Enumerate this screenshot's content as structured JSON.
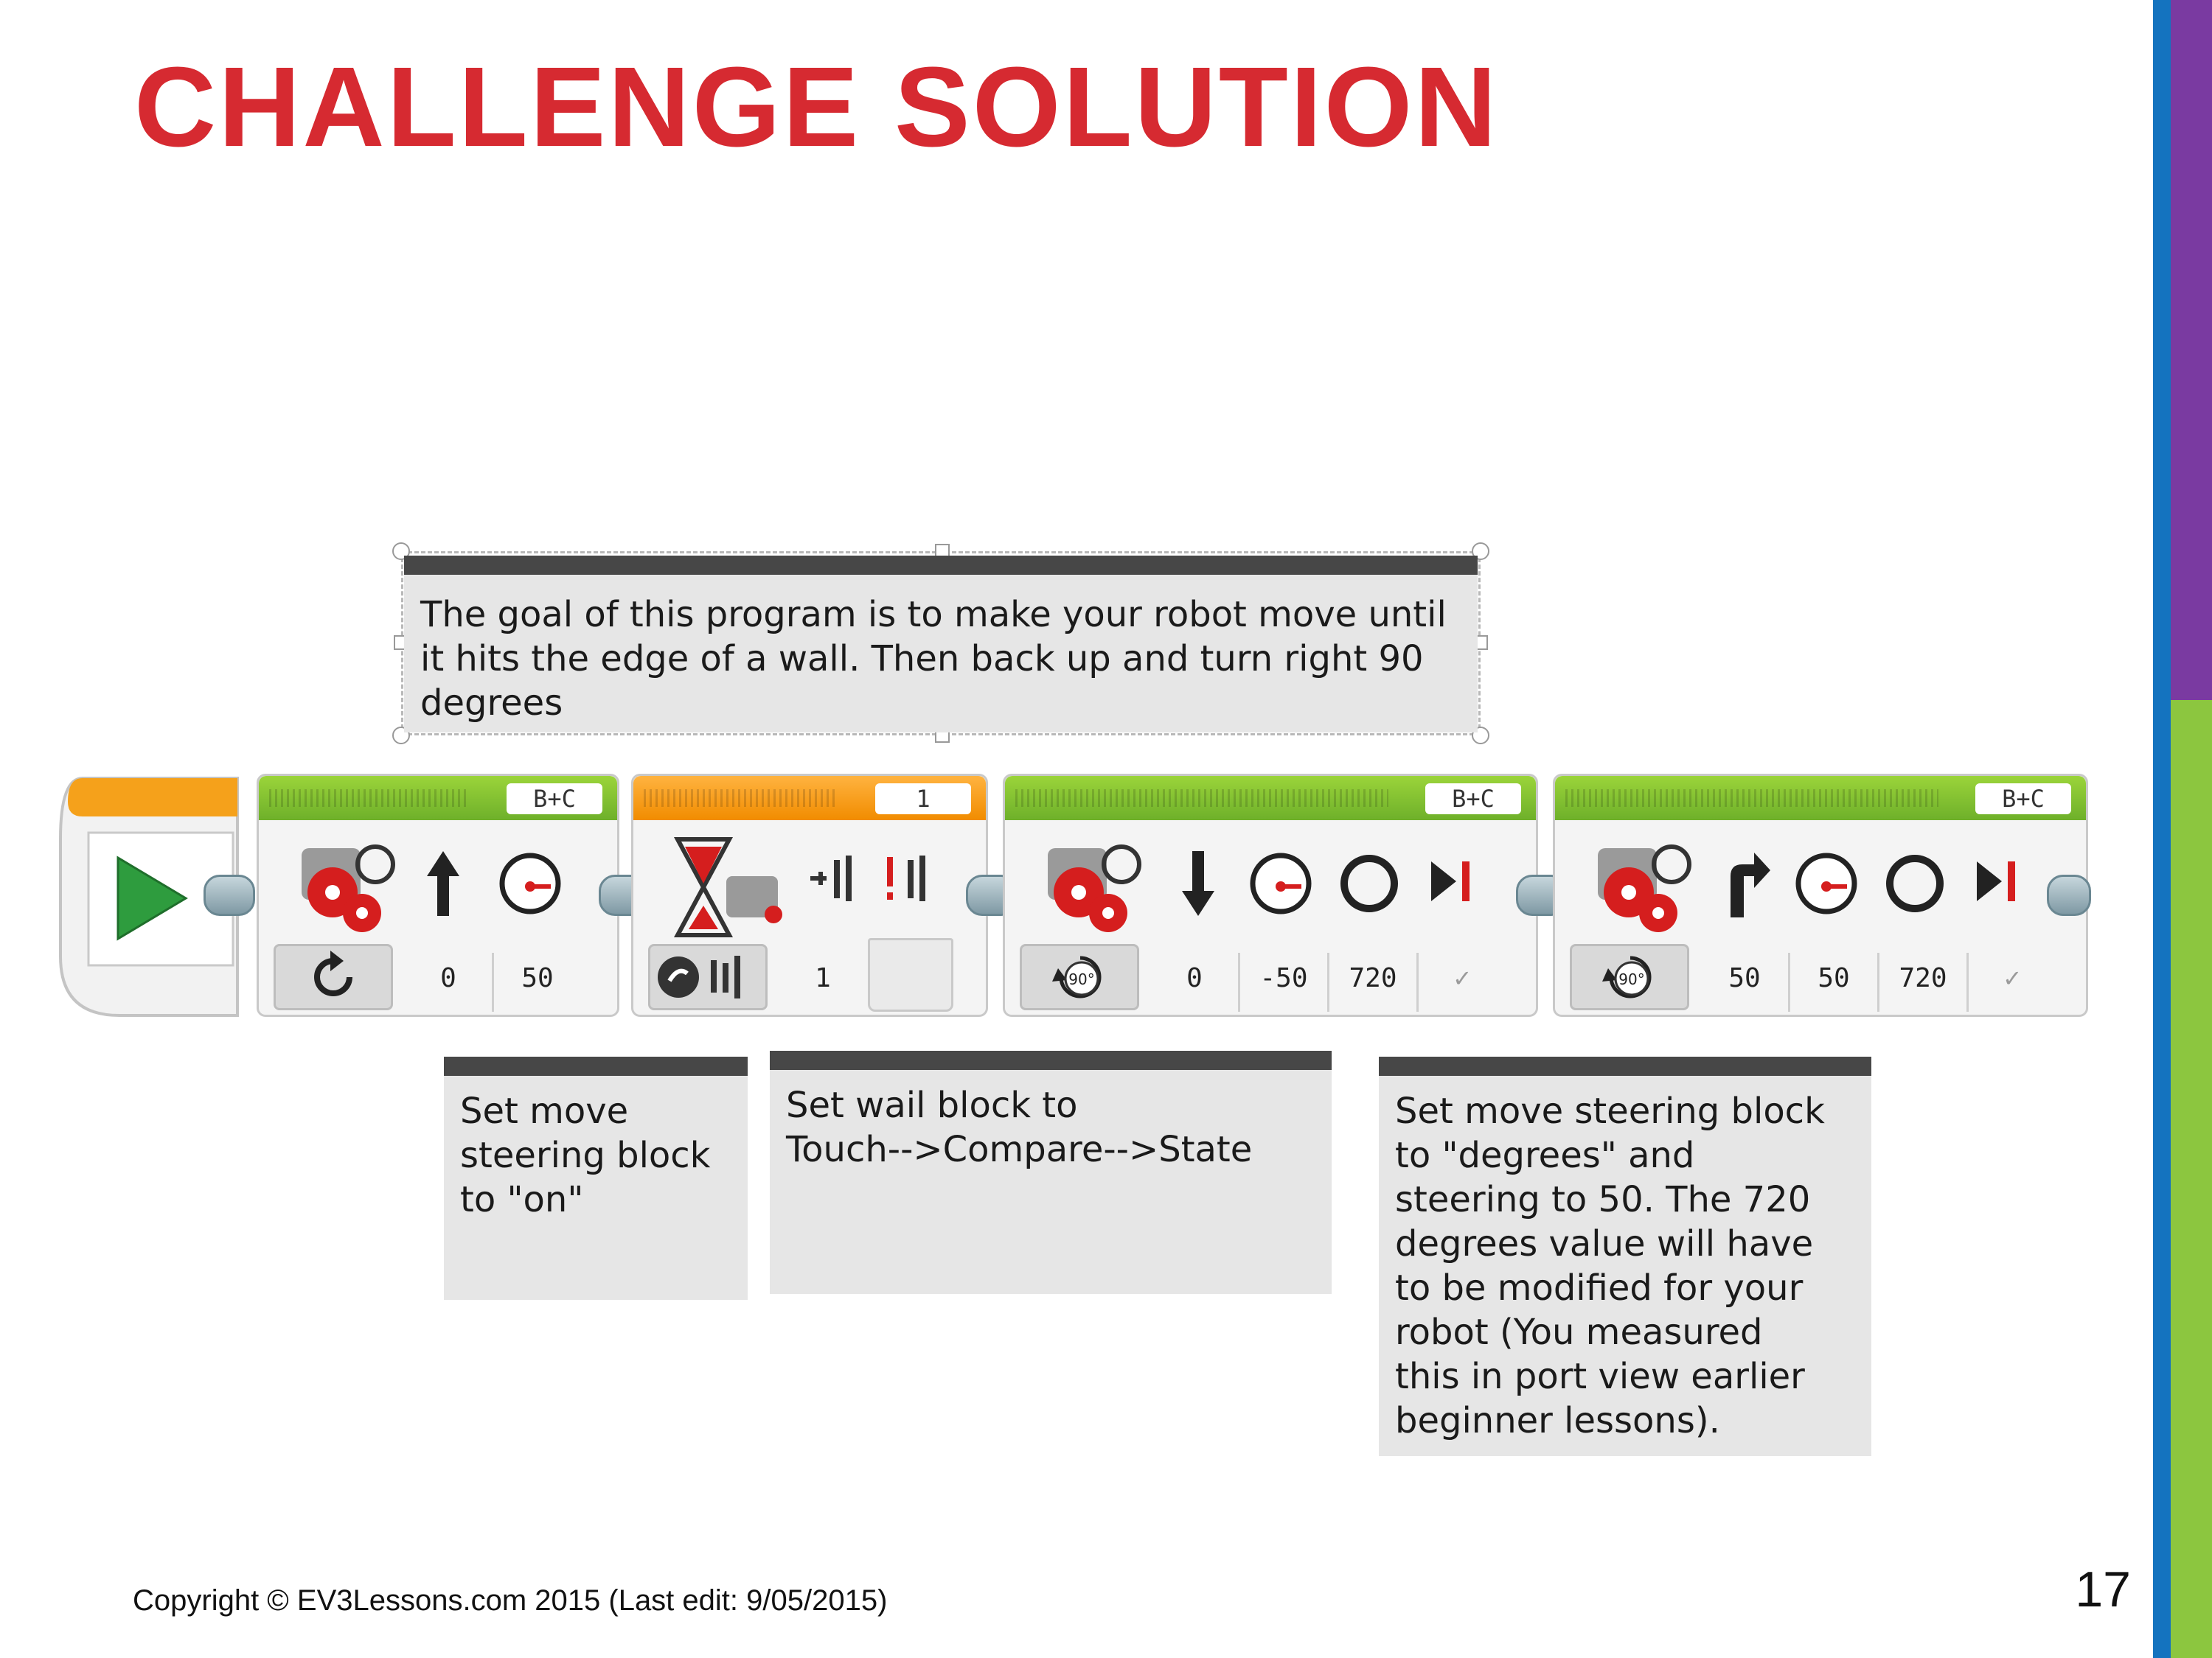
{
  "slide": {
    "title": "CHALLENGE SOLUTION",
    "footer": "Copyright © EV3Lessons.com 2015 (Last edit: 9/05/2015)",
    "page_number": "17"
  },
  "comments": {
    "goal": "The goal of this program is to make your robot move until it hits the edge of a wall. Then back up and turn right 90 degrees",
    "move_on": "Set move\nsteering block\nto \"on\"",
    "wait": "Set wail block to\n Touch-->Compare-->State",
    "move_degrees": "Set move steering block\nto \"degrees\" and\nsteering to 50. The 720\ndegrees value will have\nto be modified for your\nrobot (You measured\nthis in port view earlier\nbeginner lessons)."
  },
  "program": {
    "block1": {
      "port": "B+C",
      "mode_icon": "on-mode-icon",
      "steering": "0",
      "power": "50"
    },
    "block2": {
      "port": "1",
      "mode_icon": "touch-compare-icon",
      "state": "1"
    },
    "block3": {
      "port": "B+C",
      "mode_icon": "degrees-mode-icon",
      "steering": "0",
      "power": "-50",
      "degrees": "720",
      "brake": "✓"
    },
    "block4": {
      "port": "B+C",
      "mode_icon": "degrees-mode-icon",
      "steering": "50",
      "power": "50",
      "degrees": "720",
      "brake": "✓"
    }
  },
  "colors": {
    "title": "#d62a31",
    "move_block_header": "#7ab82e",
    "wait_block_header": "#f39200",
    "side_blue": "#1473bf",
    "side_purple": "#7a3aa1",
    "side_green": "#8cc63f"
  }
}
